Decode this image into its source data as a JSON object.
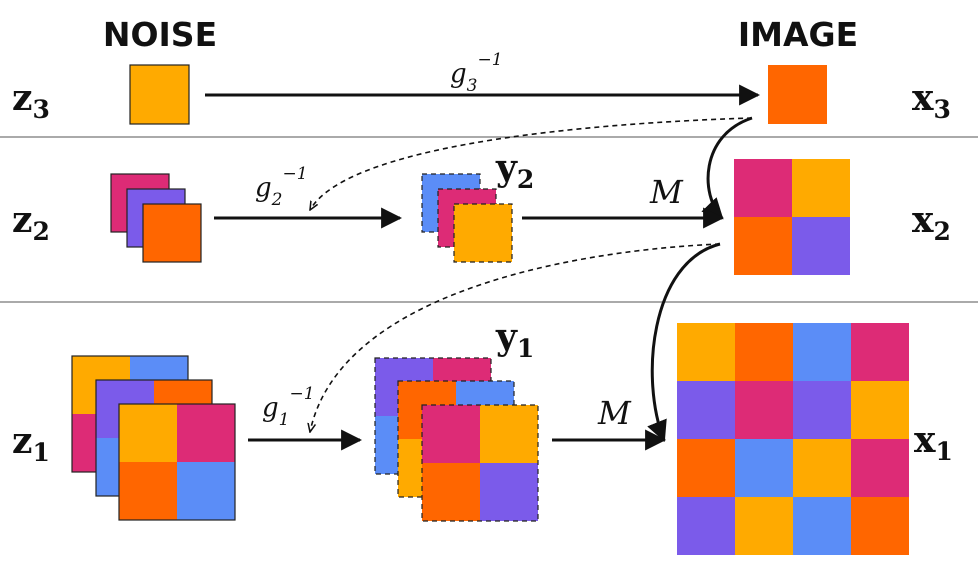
{
  "colors": {
    "orange": "#ff6600",
    "yellow": "#ffaa00",
    "pink": "#dd2b76",
    "violet": "#7b5bea",
    "blue": "#5b8df7"
  },
  "headers": {
    "noise": "NOISE",
    "image": "IMAGE"
  },
  "rows": [
    {
      "z_base": "z",
      "z_sub": "3",
      "x_base": "x",
      "x_sub": "3",
      "g_base": "g",
      "g_sub": "3",
      "g_sup": "−1"
    },
    {
      "z_base": "z",
      "z_sub": "2",
      "x_base": "x",
      "x_sub": "2",
      "y_base": "y",
      "y_sub": "2",
      "g_base": "g",
      "g_sub": "2",
      "g_sup": "−1",
      "map": "M"
    },
    {
      "z_base": "z",
      "z_sub": "1",
      "x_base": "x",
      "x_sub": "1",
      "y_base": "y",
      "y_sub": "1",
      "g_base": "g",
      "g_sub": "1",
      "g_sup": "−1",
      "map": "M"
    }
  ],
  "icon_names": [
    "arrow-icon",
    "dashed-arrow-icon",
    "curved-arrow-icon"
  ]
}
